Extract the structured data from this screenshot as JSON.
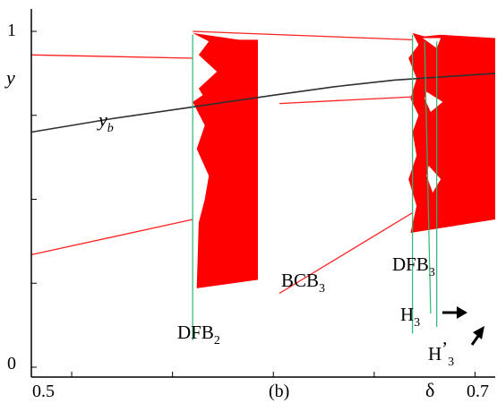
{
  "chart_data": {
    "type": "bifurcation-diagram",
    "x_range": [
      0.48,
      0.71
    ],
    "y_range": [
      0,
      1
    ],
    "x_ticks": [
      {
        "value": 0.5,
        "label": "0.5"
      },
      {
        "value": 0.7,
        "label": "0.7"
      }
    ],
    "y_ticks": [
      {
        "value": 0,
        "label": "0"
      },
      {
        "value": 1,
        "label": "1"
      }
    ],
    "axis_symbol_x": "δ",
    "axis_symbol_y": "y",
    "panel_label": "(b)",
    "yb_curve": {
      "label_main": "y",
      "label_sub": "b",
      "points": [
        [
          0.48,
          0.7
        ],
        [
          0.52,
          0.74
        ],
        [
          0.56,
          0.775
        ],
        [
          0.6,
          0.81
        ],
        [
          0.63,
          0.835
        ],
        [
          0.66,
          0.855
        ],
        [
          0.71,
          0.875
        ]
      ]
    },
    "upper_branch_left": [
      [
        0.48,
        0.93
      ],
      [
        0.56,
        0.92
      ]
    ],
    "lower_branch_left": [
      [
        0.48,
        0.335
      ],
      [
        0.56,
        0.44
      ]
    ],
    "upper_branch_right": [
      [
        0.56,
        1.0
      ],
      [
        0.669,
        0.975
      ]
    ],
    "lower_branch_right": [
      [
        0.603,
        0.22
      ],
      [
        0.669,
        0.46
      ]
    ],
    "middle_branch_right": [
      [
        0.603,
        0.785
      ],
      [
        0.669,
        0.805
      ]
    ],
    "bifurcation_lines": [
      {
        "name": "DFB2",
        "x": 0.56
      },
      {
        "name": "DFB3",
        "x": 0.669
      },
      {
        "name": "H3",
        "x": 0.675
      },
      {
        "name": "H3prime",
        "x": 0.681
      }
    ],
    "annotations": [
      {
        "id": "dfb2",
        "main": "DFB",
        "sub": "2",
        "prime": ""
      },
      {
        "id": "bcb3",
        "main": "BCB",
        "sub": "3",
        "prime": ""
      },
      {
        "id": "dfb3",
        "main": "DFB",
        "sub": "3",
        "prime": ""
      },
      {
        "id": "h3",
        "main": "H",
        "sub": "3",
        "prime": ""
      },
      {
        "id": "h3p",
        "main": "H",
        "sub": "3",
        "prime": "’"
      }
    ],
    "colors": {
      "chaotic_fill": "#ff0000",
      "branch_line": "#ff2020",
      "yb_curve": "#303030",
      "bifurcation_line": "#2bb673",
      "axis": "#000000"
    }
  }
}
